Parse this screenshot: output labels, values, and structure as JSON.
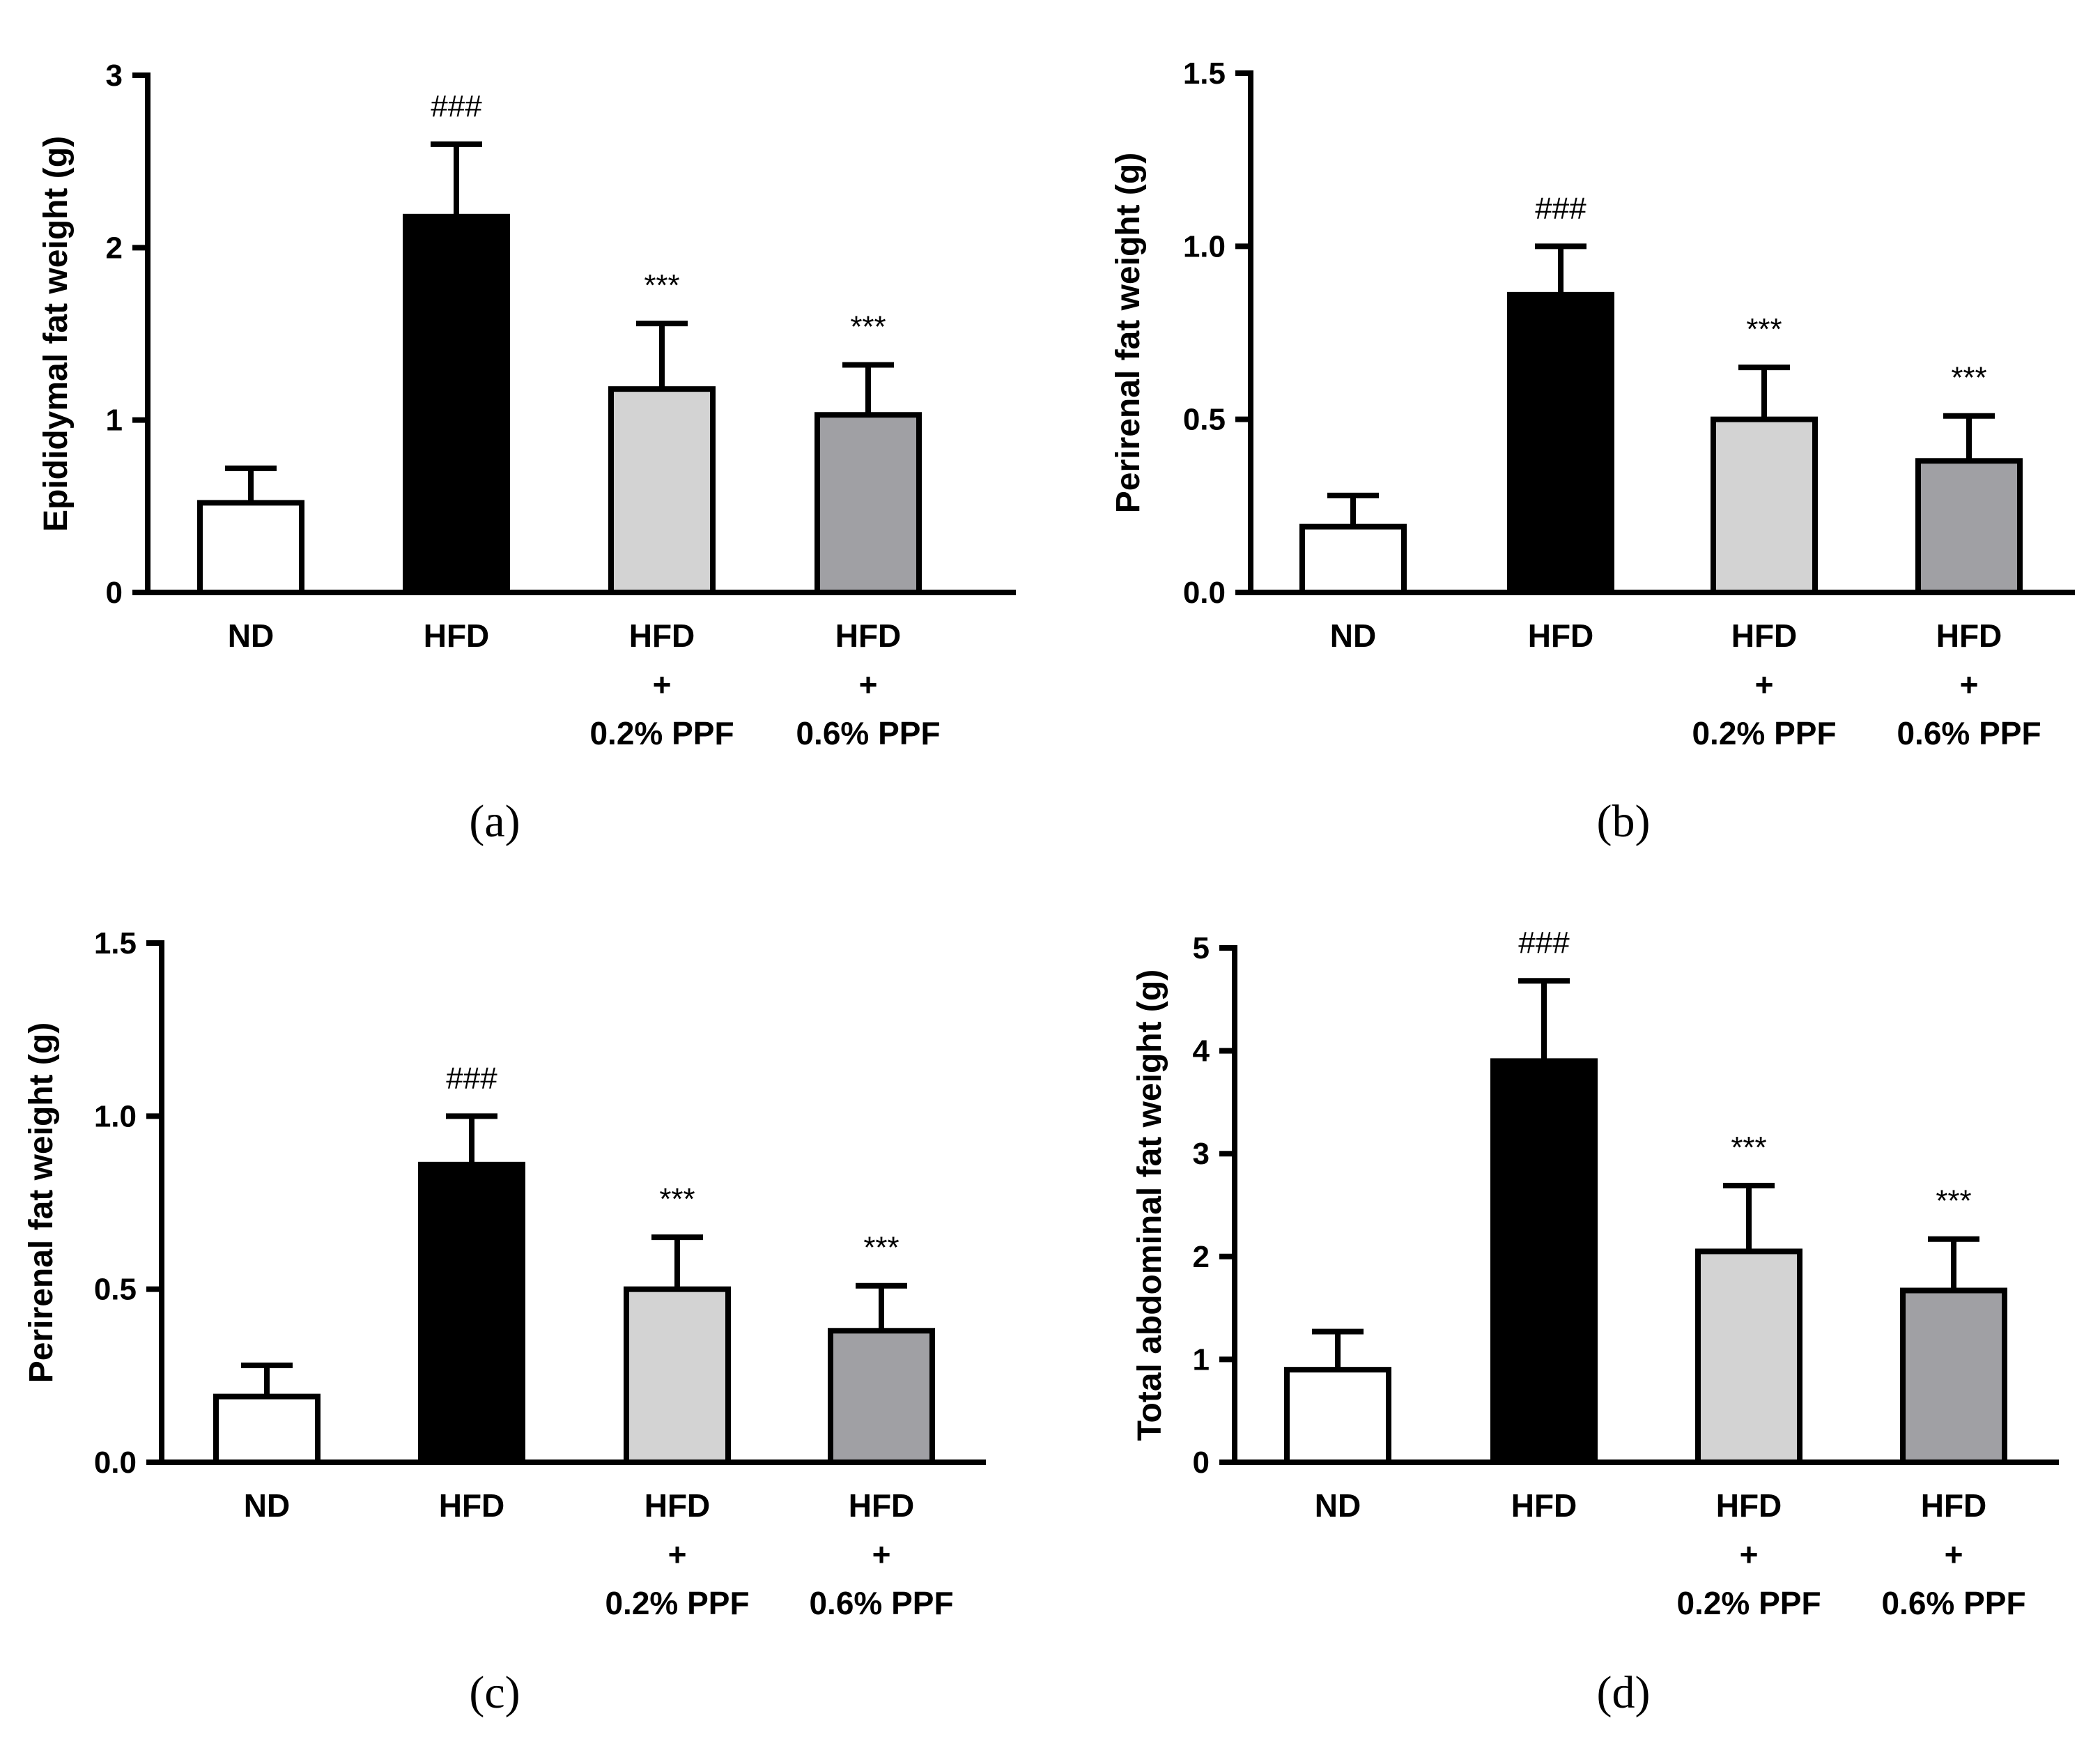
{
  "chart_data": [
    {
      "panel_label": "(a)",
      "type": "bar",
      "ylabel": "Epididymal fat weight (g)",
      "ylim": [
        0,
        3
      ],
      "yticks": [
        "0",
        "1",
        "2",
        "3"
      ],
      "categories": [
        [
          "ND"
        ],
        [
          "HFD"
        ],
        [
          "HFD",
          "+",
          "0.2% PPF"
        ],
        [
          "HFD",
          "+",
          "0.6% PPF"
        ]
      ],
      "values": [
        0.52,
        2.18,
        1.18,
        1.03
      ],
      "errors": [
        0.2,
        0.42,
        0.38,
        0.29
      ],
      "significance": [
        "",
        "###",
        "***",
        "***"
      ],
      "colors": [
        "#ffffff",
        "#000000",
        "#d3d3d3",
        "#a0a0a4"
      ]
    },
    {
      "panel_label": "(b)",
      "type": "bar",
      "ylabel": "Perirenal fat weight (g)",
      "ylim": [
        0,
        1.5
      ],
      "yticks": [
        "0.0",
        "0.5",
        "1.0",
        "1.5"
      ],
      "categories": [
        [
          "ND"
        ],
        [
          "HFD"
        ],
        [
          "HFD",
          "+",
          "0.2% PPF"
        ],
        [
          "HFD",
          "+",
          "0.6% PPF"
        ]
      ],
      "values": [
        0.19,
        0.86,
        0.5,
        0.38
      ],
      "errors": [
        0.09,
        0.14,
        0.15,
        0.13
      ],
      "significance": [
        "",
        "###",
        "***",
        "***"
      ],
      "colors": [
        "#ffffff",
        "#000000",
        "#d3d3d3",
        "#a0a0a4"
      ]
    },
    {
      "panel_label": "(c)",
      "type": "bar",
      "ylabel": "Perirenal fat weight (g)",
      "ylim": [
        0,
        1.5
      ],
      "yticks": [
        "0.0",
        "0.5",
        "1.0",
        "1.5"
      ],
      "categories": [
        [
          "ND"
        ],
        [
          "HFD"
        ],
        [
          "HFD",
          "+",
          "0.2% PPF"
        ],
        [
          "HFD",
          "+",
          "0.6% PPF"
        ]
      ],
      "values": [
        0.19,
        0.86,
        0.5,
        0.38
      ],
      "errors": [
        0.09,
        0.14,
        0.15,
        0.13
      ],
      "significance": [
        "",
        "###",
        "***",
        "***"
      ],
      "colors": [
        "#ffffff",
        "#000000",
        "#d3d3d3",
        "#a0a0a4"
      ]
    },
    {
      "panel_label": "(d)",
      "type": "bar",
      "ylabel": "Total abdominal fat weight (g)",
      "ylim": [
        0,
        5
      ],
      "yticks": [
        "0",
        "1",
        "2",
        "3",
        "4",
        "5"
      ],
      "categories": [
        [
          "ND"
        ],
        [
          "HFD"
        ],
        [
          "HFD",
          "+",
          "0.2% PPF"
        ],
        [
          "HFD",
          "+",
          "0.6% PPF"
        ]
      ],
      "values": [
        0.9,
        3.9,
        2.05,
        1.67
      ],
      "errors": [
        0.37,
        0.78,
        0.64,
        0.5
      ],
      "significance": [
        "",
        "###",
        "***",
        "***"
      ],
      "colors": [
        "#ffffff",
        "#000000",
        "#d3d3d3",
        "#a0a0a4"
      ]
    }
  ]
}
